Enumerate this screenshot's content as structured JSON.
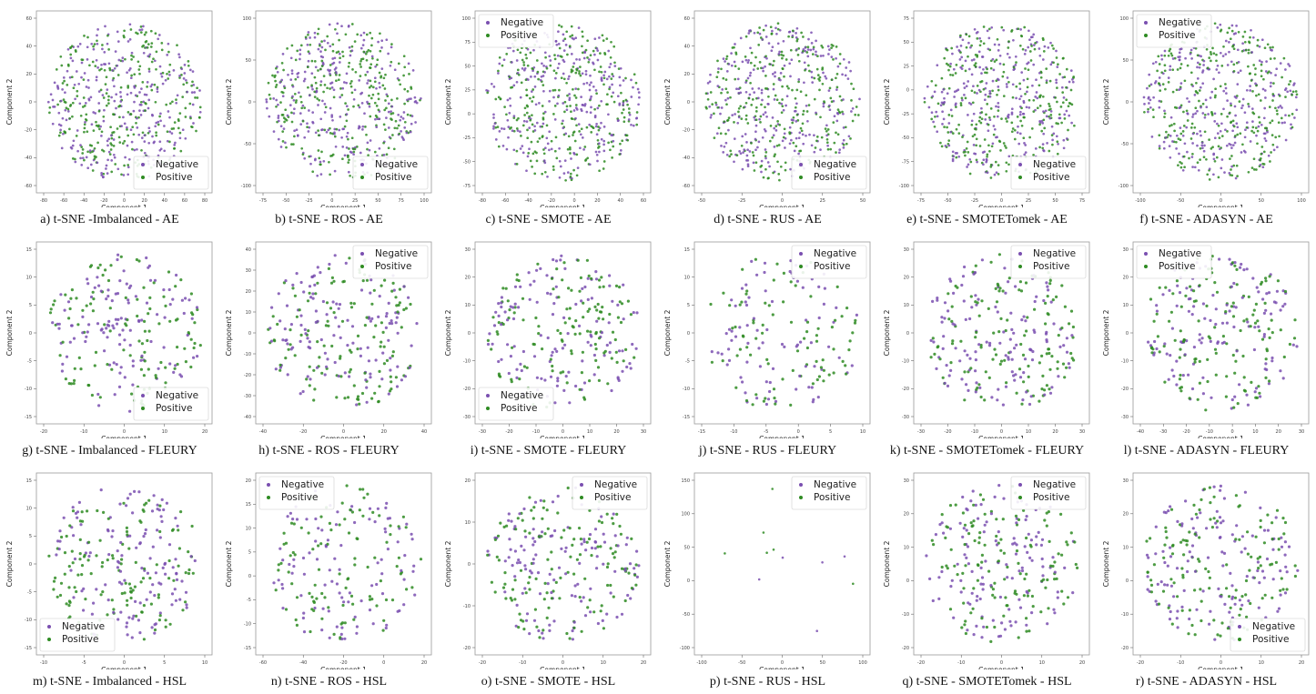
{
  "colors": {
    "negative": "#7a4fb0",
    "positive": "#2e8b22"
  },
  "chart_data": [
    {
      "type": "scatter",
      "caption": "a) t-SNE -Imbalanced - AE",
      "xlabel": "Component 1",
      "ylabel": "Component 2",
      "x_ticks": [
        "-80",
        "-60",
        "-40",
        "-20",
        "0",
        "20",
        "40",
        "60",
        "80"
      ],
      "y_ticks": [
        "-60",
        "-40",
        "-20",
        "0",
        "20",
        "40",
        "60"
      ],
      "legend": {
        "position": "bottom-right",
        "entries": [
          "Negative",
          "Positive"
        ]
      },
      "density": "high",
      "points_per_series": 550
    },
    {
      "type": "scatter",
      "caption": "b) t-SNE - ROS - AE",
      "xlabel": "Component 1",
      "ylabel": "Component 2",
      "x_ticks": [
        "-75",
        "-50",
        "-25",
        "0",
        "25",
        "50",
        "75",
        "100"
      ],
      "y_ticks": [
        "-100",
        "-50",
        "0",
        "50",
        "100"
      ],
      "legend": {
        "position": "bottom-right",
        "entries": [
          "Negative",
          "Positive"
        ]
      },
      "density": "high",
      "points_per_series": 550
    },
    {
      "type": "scatter",
      "caption": "c) t-SNE - SMOTE - AE",
      "xlabel": "Component 1",
      "ylabel": "Component 2",
      "x_ticks": [
        "-80",
        "-60",
        "-40",
        "-20",
        "0",
        "20",
        "40",
        "60"
      ],
      "y_ticks": [
        "-75",
        "-50",
        "-25",
        "0",
        "25",
        "50",
        "75",
        "100"
      ],
      "legend": {
        "position": "top-left",
        "entries": [
          "Negative",
          "Positive"
        ]
      },
      "density": "high",
      "points_per_series": 550
    },
    {
      "type": "scatter",
      "caption": "d) t-SNE - RUS - AE",
      "xlabel": "Component 1",
      "ylabel": "Component 2",
      "x_ticks": [
        "-50",
        "-25",
        "0",
        "25",
        "50"
      ],
      "y_ticks": [
        "-60",
        "-40",
        "-20",
        "0",
        "20",
        "40",
        "60"
      ],
      "legend": {
        "position": "bottom-right",
        "entries": [
          "Negative",
          "Positive"
        ]
      },
      "density": "high",
      "points_per_series": 550
    },
    {
      "type": "scatter",
      "caption": "e) t-SNE - SMOTETomek - AE",
      "xlabel": "Component 1",
      "ylabel": "Component 2",
      "x_ticks": [
        "-75",
        "-50",
        "-25",
        "0",
        "25",
        "50",
        "75"
      ],
      "y_ticks": [
        "-100",
        "-75",
        "-50",
        "-25",
        "0",
        "25",
        "50",
        "75"
      ],
      "legend": {
        "position": "bottom-right",
        "entries": [
          "Negative",
          "Positive"
        ]
      },
      "density": "high",
      "points_per_series": 550
    },
    {
      "type": "scatter",
      "caption": "f) t-SNE - ADASYN - AE",
      "xlabel": "Component 1",
      "ylabel": "Component 2",
      "x_ticks": [
        "-100",
        "-50",
        "0",
        "50",
        "100"
      ],
      "y_ticks": [
        "-100",
        "-50",
        "0",
        "50",
        "100"
      ],
      "legend": {
        "position": "top-left",
        "entries": [
          "Negative",
          "Positive"
        ]
      },
      "density": "high",
      "points_per_series": 550
    },
    {
      "type": "scatter",
      "caption": "g) t-SNE - Imbalanced - FLEURY",
      "xlabel": "Component 1",
      "ylabel": "Component 2",
      "x_ticks": [
        "-20",
        "-10",
        "0",
        "10",
        "20"
      ],
      "y_ticks": [
        "-15",
        "-10",
        "-5",
        "0",
        "5",
        "10",
        "15"
      ],
      "legend": {
        "position": "bottom-right",
        "entries": [
          "Negative",
          "Positive"
        ]
      },
      "density": "medium",
      "points_per_series": 240
    },
    {
      "type": "scatter",
      "caption": "h) t-SNE - ROS - FLEURY",
      "xlabel": "Component 1",
      "ylabel": "Component 2",
      "x_ticks": [
        "-40",
        "-20",
        "0",
        "20",
        "40"
      ],
      "y_ticks": [
        "-40",
        "-30",
        "-20",
        "-10",
        "0",
        "10",
        "20",
        "30",
        "40"
      ],
      "legend": {
        "position": "top-right",
        "entries": [
          "Negative",
          "Positive"
        ]
      },
      "density": "medium",
      "points_per_series": 260
    },
    {
      "type": "scatter",
      "caption": "i) t-SNE - SMOTE - FLEURY",
      "xlabel": "Component 1",
      "ylabel": "Component 2",
      "x_ticks": [
        "-30",
        "-20",
        "-10",
        "0",
        "10",
        "20",
        "30"
      ],
      "y_ticks": [
        "-30",
        "-20",
        "-10",
        "0",
        "10",
        "20",
        "30"
      ],
      "legend": {
        "position": "bottom-left",
        "entries": [
          "Negative",
          "Positive"
        ]
      },
      "density": "medium",
      "points_per_series": 260
    },
    {
      "type": "scatter",
      "caption": "j) t-SNE - RUS - FLEURY",
      "xlabel": "Component 1",
      "ylabel": "Component 2",
      "x_ticks": [
        "-15",
        "-10",
        "-5",
        "0",
        "5",
        "10"
      ],
      "y_ticks": [
        "-15",
        "-10",
        "-5",
        "0",
        "5",
        "10",
        "15"
      ],
      "legend": {
        "position": "top-right",
        "entries": [
          "Negative",
          "Positive"
        ]
      },
      "density": "low",
      "points_per_series": 170
    },
    {
      "type": "scatter",
      "caption": "k) t-SNE - SMOTETomek - FLEURY",
      "xlabel": "Component 1",
      "ylabel": "Component 2",
      "x_ticks": [
        "-30",
        "-20",
        "-10",
        "0",
        "10",
        "20",
        "30"
      ],
      "y_ticks": [
        "-30",
        "-20",
        "-10",
        "0",
        "10",
        "20",
        "30"
      ],
      "legend": {
        "position": "top-right",
        "entries": [
          "Negative",
          "Positive"
        ]
      },
      "density": "medium",
      "points_per_series": 260
    },
    {
      "type": "scatter",
      "caption": "l) t-SNE - ADASYN - FLEURY",
      "xlabel": "Component 1",
      "ylabel": "Component 2",
      "x_ticks": [
        "-40",
        "-30",
        "-20",
        "-10",
        "0",
        "10",
        "20",
        "30"
      ],
      "y_ticks": [
        "-30",
        "-20",
        "-10",
        "0",
        "10",
        "20",
        "30"
      ],
      "legend": {
        "position": "top-left",
        "entries": [
          "Negative",
          "Positive"
        ]
      },
      "density": "medium",
      "points_per_series": 260
    },
    {
      "type": "scatter",
      "caption": "m) t-SNE - Imbalanced - HSL",
      "xlabel": "Component 1",
      "ylabel": "Component 2",
      "x_ticks": [
        "-10",
        "-5",
        "0",
        "5",
        "10"
      ],
      "y_ticks": [
        "-15",
        "-10",
        "-5",
        "0",
        "5",
        "10",
        "15"
      ],
      "legend": {
        "position": "bottom-left",
        "entries": [
          "Negative",
          "Positive"
        ]
      },
      "density": "medium",
      "points_per_series": 260
    },
    {
      "type": "scatter",
      "caption": "n) t-SNE - ROS - HSL",
      "xlabel": "Component 1",
      "ylabel": "Component 2",
      "x_ticks": [
        "-60",
        "-40",
        "-20",
        "0",
        "20"
      ],
      "y_ticks": [
        "-15",
        "-10",
        "-5",
        "0",
        "5",
        "10",
        "15",
        "20"
      ],
      "legend": {
        "position": "top-left",
        "entries": [
          "Negative",
          "Positive"
        ]
      },
      "density": "medium",
      "points_per_series": 200
    },
    {
      "type": "scatter",
      "caption": "o) t-SNE - SMOTE - HSL",
      "xlabel": "Component 1",
      "ylabel": "Component 2",
      "x_ticks": [
        "-20",
        "-10",
        "0",
        "10",
        "20"
      ],
      "y_ticks": [
        "-20",
        "-10",
        "0",
        "10",
        "20"
      ],
      "legend": {
        "position": "top-right",
        "entries": [
          "Negative",
          "Positive"
        ]
      },
      "density": "medium",
      "points_per_series": 260
    },
    {
      "type": "scatter",
      "caption": "p) t-SNE - RUS - HSL",
      "xlabel": "Component 1",
      "ylabel": "Component 2",
      "x_ticks": [
        "-100",
        "-50",
        "0",
        "50",
        "100"
      ],
      "y_ticks": [
        "-100",
        "-50",
        "0",
        "50",
        "100",
        "150"
      ],
      "legend": {
        "position": "top-right",
        "entries": [
          "Negative",
          "Positive"
        ]
      },
      "density": "sparse",
      "points_per_series": 11
    },
    {
      "type": "scatter",
      "caption": "q) t-SNE - SMOTETomek - HSL",
      "xlabel": "Component 1",
      "ylabel": "Component 2",
      "x_ticks": [
        "-20",
        "-10",
        "0",
        "10",
        "20"
      ],
      "y_ticks": [
        "-20",
        "-10",
        "0",
        "10",
        "20",
        "30"
      ],
      "legend": {
        "position": "top-right",
        "entries": [
          "Negative",
          "Positive"
        ]
      },
      "density": "medium",
      "points_per_series": 260
    },
    {
      "type": "scatter",
      "caption": "r) t-SNE - ADASYN - HSL",
      "xlabel": "Component 1",
      "ylabel": "Component 2",
      "x_ticks": [
        "-20",
        "-10",
        "0",
        "10",
        "20"
      ],
      "y_ticks": [
        "-20",
        "-10",
        "0",
        "10",
        "20",
        "30"
      ],
      "legend": {
        "position": "bottom-right",
        "entries": [
          "Negative",
          "Positive"
        ]
      },
      "density": "medium",
      "points_per_series": 260
    }
  ]
}
